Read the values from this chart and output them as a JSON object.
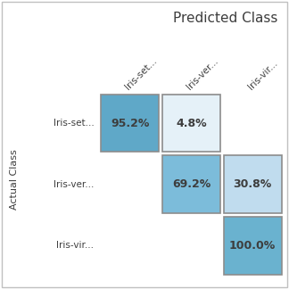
{
  "title": "Predicted Class",
  "ylabel": "Actual Class",
  "col_labels": [
    "Iris-set...",
    "Iris-ver...",
    "Iris-vir..."
  ],
  "row_labels": [
    "Iris-set...",
    "Iris-ver...",
    "Iris-vir..."
  ],
  "matrix": [
    [
      95.2,
      4.8,
      null
    ],
    [
      null,
      69.2,
      30.8
    ],
    [
      null,
      null,
      100.0
    ]
  ],
  "cell_colors": [
    [
      "#5fa8c8",
      "#e5f1f8",
      null
    ],
    [
      null,
      "#7cbcda",
      "#c0dcee"
    ],
    [
      null,
      null,
      "#6ab2cf"
    ]
  ],
  "text_color": "#3d3d3d",
  "background_color": "#ffffff",
  "border_color": "#8c8c8c",
  "title_fontsize": 11,
  "label_fontsize": 8,
  "cell_fontsize": 9,
  "tick_fontsize": 7.5,
  "fig_border_color": "#c0c0c0"
}
